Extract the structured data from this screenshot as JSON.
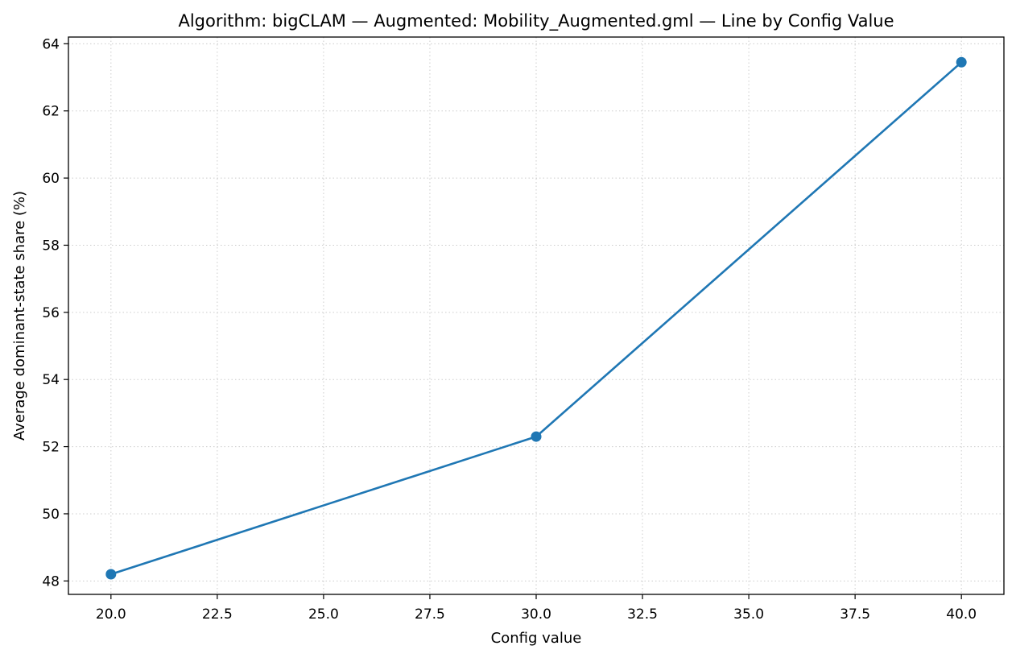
{
  "chart_data": {
    "type": "line",
    "title": "Algorithm: bigCLAM — Augmented: Mobility_Augmented.gml — Line by Config Value",
    "xlabel": "Config value",
    "ylabel": "Average dominant-state share (%)",
    "x": [
      20.0,
      30.0,
      40.0
    ],
    "series": [
      {
        "values": [
          48.2,
          52.3,
          63.45
        ]
      }
    ],
    "xlim": [
      19.0,
      41.0
    ],
    "ylim": [
      47.6,
      64.2
    ],
    "xticks": [
      20.0,
      22.5,
      25.0,
      27.5,
      30.0,
      32.5,
      35.0,
      37.5,
      40.0
    ],
    "xtick_labels": [
      "20.0",
      "22.5",
      "25.0",
      "27.5",
      "30.0",
      "32.5",
      "35.0",
      "37.5",
      "40.0"
    ],
    "yticks": [
      48,
      50,
      52,
      54,
      56,
      58,
      60,
      62,
      64
    ],
    "ytick_labels": [
      "48",
      "50",
      "52",
      "54",
      "56",
      "58",
      "60",
      "62",
      "64"
    ],
    "grid": true,
    "grid_style": "dotted",
    "markers": "circle",
    "colors": {
      "line": "#1f77b4",
      "grid": "#cccccc",
      "axes": "#000000"
    }
  }
}
